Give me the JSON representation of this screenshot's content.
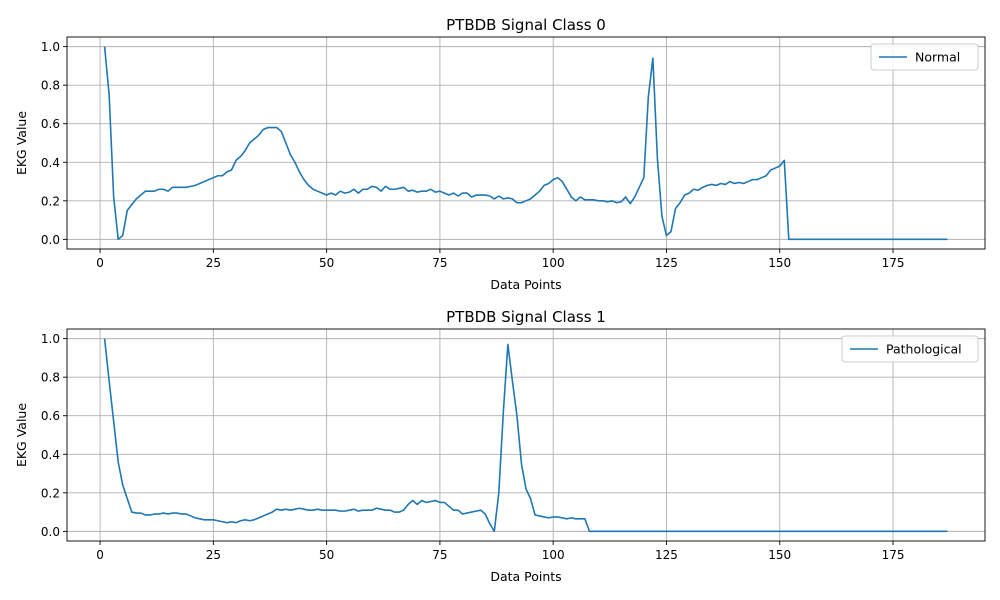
{
  "chart_data": [
    {
      "type": "line",
      "title": "PTBDB Signal Class 0",
      "xlabel": "Data Points",
      "ylabel": "EKG Value",
      "xlim": [
        -7.3,
        195.3
      ],
      "ylim": [
        -0.05,
        1.05
      ],
      "xticks": [
        0,
        25,
        50,
        75,
        100,
        125,
        150,
        175
      ],
      "yticks": [
        0.0,
        0.2,
        0.4,
        0.6,
        0.8,
        1.0
      ],
      "grid": true,
      "legend_position": "top-right",
      "color": "#1f77b4",
      "series": [
        {
          "name": "Normal",
          "x": [
            1,
            2,
            3,
            4,
            5,
            6,
            7,
            8,
            9,
            10,
            11,
            12,
            13,
            14,
            15,
            16,
            17,
            18,
            19,
            20,
            21,
            22,
            23,
            24,
            25,
            26,
            27,
            28,
            29,
            30,
            31,
            32,
            33,
            34,
            35,
            36,
            37,
            38,
            39,
            40,
            41,
            42,
            43,
            44,
            45,
            46,
            47,
            48,
            49,
            50,
            51,
            52,
            53,
            54,
            55,
            56,
            57,
            58,
            59,
            60,
            61,
            62,
            63,
            64,
            65,
            66,
            67,
            68,
            69,
            70,
            71,
            72,
            73,
            74,
            75,
            76,
            77,
            78,
            79,
            80,
            81,
            82,
            83,
            84,
            85,
            86,
            87,
            88,
            89,
            90,
            91,
            92,
            93,
            94,
            95,
            96,
            97,
            98,
            99,
            100,
            101,
            102,
            103,
            104,
            105,
            106,
            107,
            108,
            109,
            110,
            111,
            112,
            113,
            114,
            115,
            116,
            117,
            118,
            119,
            120,
            121,
            122,
            123,
            124,
            125,
            126,
            127,
            128,
            129,
            130,
            131,
            132,
            133,
            134,
            135,
            136,
            137,
            138,
            139,
            140,
            141,
            142,
            143,
            144,
            145,
            146,
            147,
            148,
            149,
            150,
            151,
            152,
            153,
            187
          ],
          "y": [
            1.0,
            0.75,
            0.22,
            0.0,
            0.02,
            0.15,
            0.18,
            0.21,
            0.23,
            0.25,
            0.25,
            0.25,
            0.26,
            0.26,
            0.25,
            0.27,
            0.27,
            0.27,
            0.27,
            0.275,
            0.28,
            0.29,
            0.3,
            0.31,
            0.32,
            0.33,
            0.33,
            0.35,
            0.36,
            0.41,
            0.43,
            0.46,
            0.5,
            0.52,
            0.54,
            0.57,
            0.58,
            0.58,
            0.58,
            0.56,
            0.5,
            0.44,
            0.4,
            0.35,
            0.31,
            0.28,
            0.26,
            0.25,
            0.24,
            0.23,
            0.24,
            0.23,
            0.25,
            0.24,
            0.245,
            0.26,
            0.24,
            0.26,
            0.26,
            0.275,
            0.27,
            0.25,
            0.275,
            0.26,
            0.26,
            0.265,
            0.27,
            0.25,
            0.255,
            0.245,
            0.25,
            0.25,
            0.26,
            0.245,
            0.25,
            0.24,
            0.23,
            0.24,
            0.225,
            0.24,
            0.24,
            0.22,
            0.23,
            0.23,
            0.23,
            0.225,
            0.21,
            0.225,
            0.21,
            0.215,
            0.21,
            0.19,
            0.19,
            0.2,
            0.21,
            0.23,
            0.25,
            0.28,
            0.29,
            0.31,
            0.32,
            0.3,
            0.26,
            0.22,
            0.2,
            0.22,
            0.205,
            0.205,
            0.205,
            0.2,
            0.2,
            0.195,
            0.2,
            0.19,
            0.195,
            0.22,
            0.185,
            0.22,
            0.27,
            0.32,
            0.74,
            0.94,
            0.42,
            0.12,
            0.02,
            0.04,
            0.16,
            0.19,
            0.23,
            0.24,
            0.26,
            0.255,
            0.27,
            0.28,
            0.285,
            0.28,
            0.29,
            0.285,
            0.3,
            0.29,
            0.295,
            0.29,
            0.3,
            0.31,
            0.31,
            0.32,
            0.33,
            0.36,
            0.37,
            0.38,
            0.41,
            0.0,
            0.0,
            0.0
          ]
        }
      ]
    },
    {
      "type": "line",
      "title": "PTBDB Signal Class 1",
      "xlabel": "Data Points",
      "ylabel": "EKG Value",
      "xlim": [
        -7.3,
        195.3
      ],
      "ylim": [
        -0.05,
        1.05
      ],
      "xticks": [
        0,
        25,
        50,
        75,
        100,
        125,
        150,
        175
      ],
      "yticks": [
        0.0,
        0.2,
        0.4,
        0.6,
        0.8,
        1.0
      ],
      "grid": true,
      "legend_position": "top-right",
      "color": "#1f77b4",
      "series": [
        {
          "name": "Pathological",
          "x": [
            1,
            2,
            3,
            4,
            5,
            6,
            7,
            8,
            9,
            10,
            11,
            12,
            13,
            14,
            15,
            16,
            17,
            18,
            19,
            20,
            21,
            22,
            23,
            24,
            25,
            26,
            27,
            28,
            29,
            30,
            31,
            32,
            33,
            34,
            35,
            36,
            37,
            38,
            39,
            40,
            41,
            42,
            43,
            44,
            45,
            46,
            47,
            48,
            49,
            50,
            51,
            52,
            53,
            54,
            55,
            56,
            57,
            58,
            59,
            60,
            61,
            62,
            63,
            64,
            65,
            66,
            67,
            68,
            69,
            70,
            71,
            72,
            73,
            74,
            75,
            76,
            77,
            78,
            79,
            80,
            81,
            82,
            83,
            84,
            85,
            86,
            87,
            88,
            89,
            90,
            91,
            92,
            93,
            94,
            95,
            96,
            97,
            98,
            99,
            100,
            101,
            102,
            103,
            104,
            105,
            106,
            107,
            108,
            109,
            187
          ],
          "y": [
            1.0,
            0.78,
            0.57,
            0.36,
            0.24,
            0.17,
            0.1,
            0.095,
            0.095,
            0.085,
            0.085,
            0.09,
            0.09,
            0.095,
            0.09,
            0.095,
            0.095,
            0.09,
            0.09,
            0.08,
            0.07,
            0.065,
            0.06,
            0.06,
            0.06,
            0.055,
            0.05,
            0.045,
            0.05,
            0.045,
            0.055,
            0.06,
            0.055,
            0.06,
            0.07,
            0.08,
            0.09,
            0.1,
            0.115,
            0.11,
            0.115,
            0.11,
            0.115,
            0.12,
            0.115,
            0.11,
            0.11,
            0.115,
            0.11,
            0.11,
            0.11,
            0.11,
            0.105,
            0.105,
            0.11,
            0.115,
            0.105,
            0.11,
            0.11,
            0.11,
            0.12,
            0.115,
            0.11,
            0.11,
            0.1,
            0.1,
            0.11,
            0.14,
            0.16,
            0.14,
            0.16,
            0.15,
            0.155,
            0.16,
            0.15,
            0.15,
            0.13,
            0.11,
            0.11,
            0.09,
            0.095,
            0.1,
            0.105,
            0.11,
            0.09,
            0.04,
            0.0,
            0.2,
            0.62,
            0.97,
            0.78,
            0.6,
            0.35,
            0.22,
            0.17,
            0.085,
            0.08,
            0.075,
            0.07,
            0.075,
            0.075,
            0.07,
            0.065,
            0.07,
            0.065,
            0.065,
            0.065,
            0.0,
            0.0,
            0.0
          ]
        }
      ]
    }
  ]
}
